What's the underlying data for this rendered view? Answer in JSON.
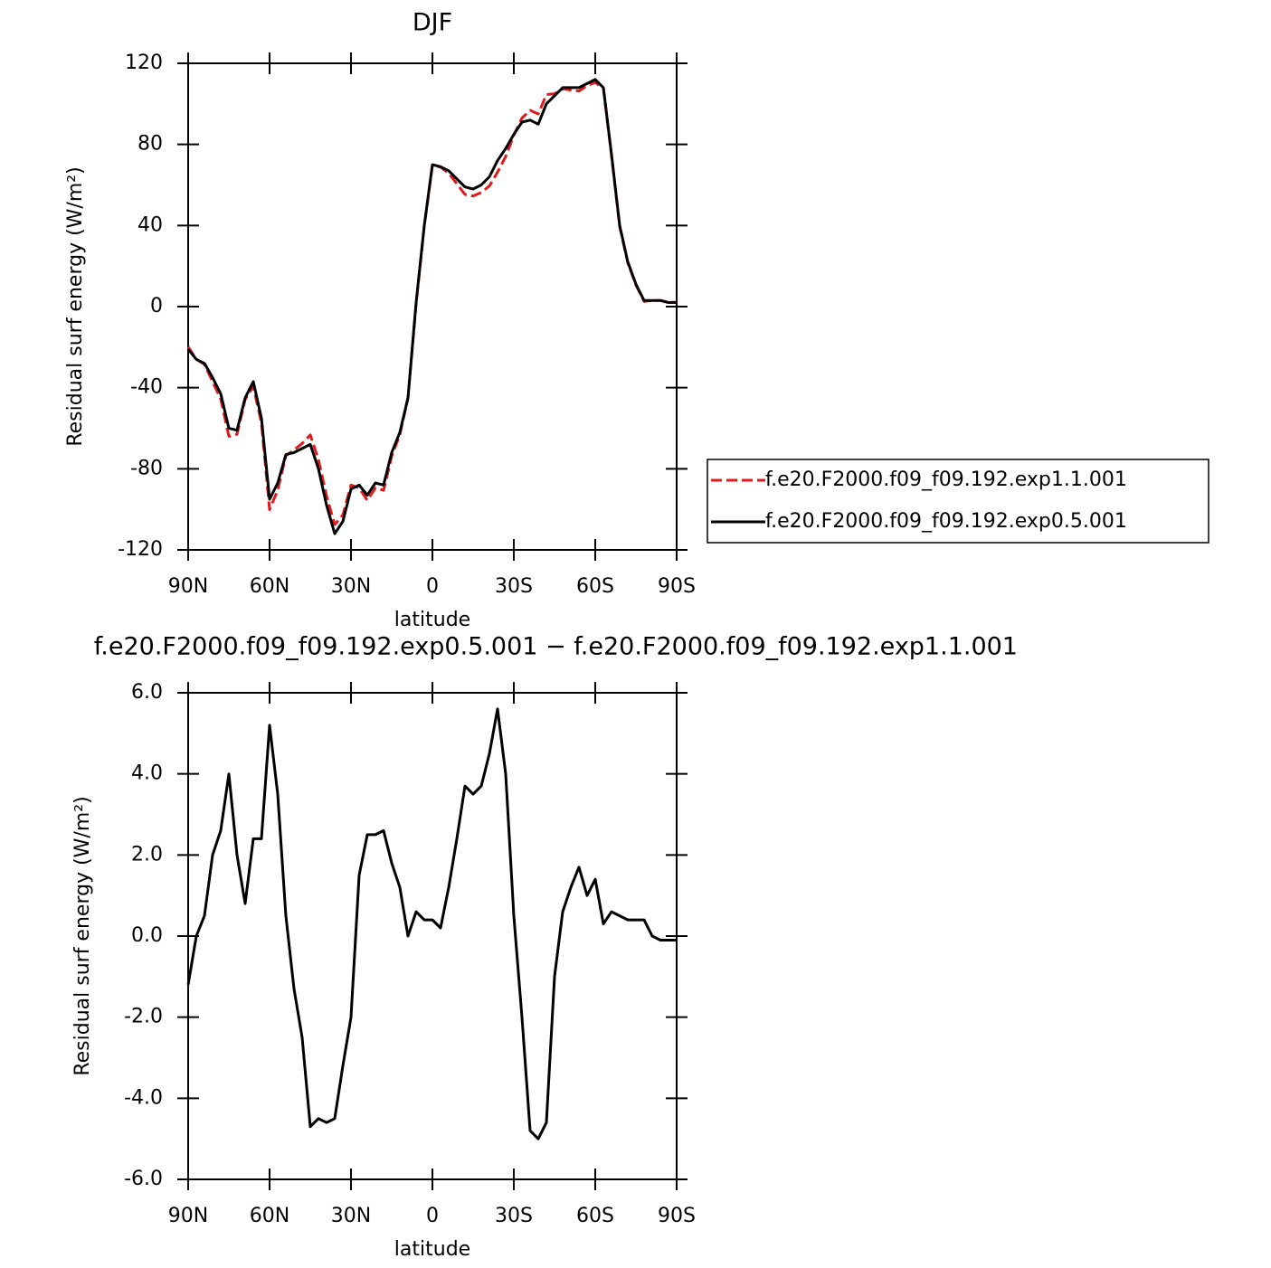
{
  "chart_data": [
    {
      "type": "line",
      "title": "DJF",
      "xlabel": "latitude",
      "ylabel": "Residual surf energy (W/m²)",
      "x": [
        90,
        87,
        84,
        81,
        78,
        75,
        72,
        69,
        66,
        63,
        60,
        57,
        54,
        51,
        48,
        45,
        42,
        39,
        36,
        33,
        30,
        27,
        24,
        21,
        18,
        15,
        12,
        9,
        6,
        3,
        0,
        -3,
        -6,
        -9,
        -12,
        -15,
        -18,
        -21,
        -24,
        -27,
        -30,
        -33,
        -36,
        -39,
        -42,
        -45,
        -48,
        -51,
        -54,
        -57,
        -60,
        -63,
        -66,
        -69,
        -72,
        -75,
        -78,
        -81,
        -84,
        -87,
        -90
      ],
      "series": [
        {
          "name": "f.e20.F2000.f09_f09.192.exp1.1.001",
          "color": "#e31a1c",
          "dash": true,
          "values": [
            -19.8,
            -26,
            -28.5,
            -37,
            -45.6,
            -64,
            -63,
            -45.8,
            -39.4,
            -57.4,
            -100.2,
            -90.5,
            -73.5,
            -70.7,
            -67.5,
            -63.3,
            -75.5,
            -93.4,
            -107.5,
            -102.8,
            -88,
            -89.5,
            -95.5,
            -89.5,
            -90.6,
            -73.8,
            -63.2,
            -45,
            1.4,
            39.6,
            69.6,
            68.8,
            65.8,
            60.6,
            55.3,
            54.5,
            56.3,
            59.5,
            66.4,
            74,
            84.5,
            93,
            96.8,
            95,
            104.6,
            105,
            107.4,
            106.8,
            106.3,
            109,
            110.6,
            107.7,
            74.4,
            39.5,
            21.6,
            10.6,
            2.6,
            3,
            3.1,
            2.1,
            2.1
          ]
        },
        {
          "name": "f.e20.F2000.f09_f09.192.exp0.5.001",
          "color": "#000000",
          "dash": false,
          "values": [
            -21,
            -26,
            -28,
            -35,
            -43,
            -60,
            -61,
            -45,
            -37,
            -55,
            -95,
            -87,
            -73,
            -72,
            -70,
            -68,
            -80,
            -98,
            -112,
            -106,
            -90,
            -88,
            -93,
            -87,
            -88,
            -72,
            -62,
            -45,
            2,
            40,
            70,
            69,
            67,
            63,
            59,
            58,
            60,
            64,
            72,
            78,
            85,
            91,
            92,
            90,
            100,
            104,
            108,
            108,
            108,
            110,
            112,
            108,
            75,
            40,
            22,
            11,
            3,
            3,
            3,
            2,
            2
          ]
        }
      ],
      "xlim": [
        90,
        -90
      ],
      "xticks": [
        {
          "value": 90,
          "label": "90N"
        },
        {
          "value": 60,
          "label": "60N"
        },
        {
          "value": 30,
          "label": "30N"
        },
        0,
        {
          "value": -30,
          "label": "30S"
        },
        {
          "value": -60,
          "label": "60S"
        },
        {
          "value": -90,
          "label": "90S"
        }
      ],
      "ylim": [
        -120,
        120
      ],
      "yticks": [
        120,
        80,
        40,
        0,
        -40,
        -80,
        -120
      ],
      "legend": "right"
    },
    {
      "type": "line",
      "title": "f.e20.F2000.f09_f09.192.exp0.5.001 − f.e20.F2000.f09_f09.192.exp1.1.001",
      "xlabel": "latitude",
      "ylabel": "Residual surf energy (W/m²)",
      "x": [
        90,
        87,
        84,
        81,
        78,
        75,
        72,
        69,
        66,
        63,
        60,
        57,
        54,
        51,
        48,
        45,
        42,
        39,
        36,
        33,
        30,
        27,
        24,
        21,
        18,
        15,
        12,
        9,
        6,
        3,
        0,
        -3,
        -6,
        -9,
        -12,
        -15,
        -18,
        -21,
        -24,
        -27,
        -30,
        -33,
        -36,
        -39,
        -42,
        -45,
        -48,
        -51,
        -54,
        -57,
        -60,
        -63,
        -66,
        -69,
        -72,
        -75,
        -78,
        -81,
        -84,
        -87,
        -90
      ],
      "color": "#000000",
      "values": [
        -1.2,
        0,
        0.5,
        2,
        2.6,
        4,
        2,
        0.8,
        2.4,
        2.4,
        5.2,
        3.5,
        0.5,
        -1.3,
        -2.5,
        -4.7,
        -4.5,
        -4.6,
        -4.5,
        -3.2,
        -2,
        1.5,
        2.5,
        2.5,
        2.6,
        1.8,
        1.2,
        0,
        0.6,
        0.4,
        0.4,
        0.2,
        1.2,
        2.4,
        3.7,
        3.5,
        3.7,
        4.5,
        5.6,
        4,
        0.5,
        -2,
        -4.8,
        -5,
        -4.6,
        -1,
        0.6,
        1.2,
        1.7,
        1,
        1.4,
        0.3,
        0.6,
        0.5,
        0.4,
        0.4,
        0.4,
        0,
        -0.1,
        -0.1,
        -0.1
      ],
      "xlim": [
        90,
        -90
      ],
      "xticks": [
        {
          "value": 90,
          "label": "90N"
        },
        {
          "value": 60,
          "label": "60N"
        },
        {
          "value": 30,
          "label": "30N"
        },
        0,
        {
          "value": -30,
          "label": "30S"
        },
        {
          "value": -60,
          "label": "60S"
        },
        {
          "value": -90,
          "label": "90S"
        }
      ],
      "ylim": [
        -6,
        6
      ],
      "yticks": [
        {
          "value": 6,
          "label": "6.0"
        },
        {
          "value": 4,
          "label": "4.0"
        },
        {
          "value": 2,
          "label": "2.0"
        },
        {
          "value": 0,
          "label": "0.0"
        },
        {
          "value": -2,
          "label": "-2.0"
        },
        {
          "value": -4,
          "label": "-4.0"
        },
        {
          "value": -6,
          "label": "-6.0"
        }
      ]
    }
  ]
}
